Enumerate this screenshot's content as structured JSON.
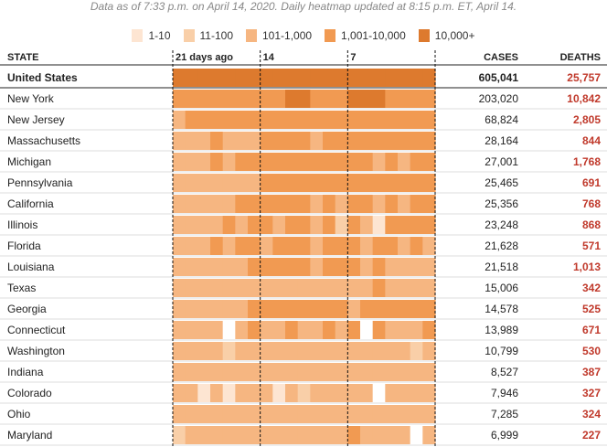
{
  "subtitle": "Data as of 7:33 p.m. on April 14, 2020. Daily heatmap updated at 8:15 p.m. ET, April 14.",
  "legend": [
    {
      "label": "1-10",
      "color": "#fde5d2"
    },
    {
      "label": "11-100",
      "color": "#f9cfa8"
    },
    {
      "label": "101-1,000",
      "color": "#f6b681"
    },
    {
      "label": "1,001-10,000",
      "color": "#f19a52"
    },
    {
      "label": "10,000+",
      "color": "#dd7a2e"
    }
  ],
  "headers": {
    "state": "STATE",
    "cases": "CASES",
    "deaths": "DEATHS"
  },
  "timeline_labels": [
    {
      "label": "21 days ago",
      "day_index": 0
    },
    {
      "label": "14",
      "day_index": 7
    },
    {
      "label": "7",
      "day_index": 14
    }
  ],
  "colors": {
    "deaths": "#c0392b",
    "divider": "#222222",
    "rowline": "#dddddd"
  },
  "chart_data": {
    "type": "heatmap",
    "title": "",
    "x_unit": "day (oldest to newest, 21 days)",
    "value_scale": "0=none, 1=1-10, 2=11-100, 3=101-1,000, 4=1,001-10,000, 5=10,000+",
    "rows": [
      {
        "state": "United States",
        "cases": "605,041",
        "deaths": "25,757",
        "bold": true,
        "cells": [
          5,
          5,
          5,
          5,
          5,
          5,
          5,
          5,
          5,
          5,
          5,
          5,
          5,
          5,
          5,
          5,
          5,
          5,
          5,
          5,
          5
        ]
      },
      {
        "state": "New York",
        "cases": "203,020",
        "deaths": "10,842",
        "cells": [
          4,
          4,
          4,
          4,
          4,
          4,
          4,
          4,
          4,
          5,
          5,
          4,
          4,
          4,
          5,
          5,
          5,
          4,
          4,
          4,
          4
        ]
      },
      {
        "state": "New Jersey",
        "cases": "68,824",
        "deaths": "2,805",
        "cells": [
          3,
          4,
          4,
          4,
          4,
          4,
          4,
          4,
          4,
          4,
          4,
          4,
          4,
          4,
          4,
          4,
          4,
          4,
          4,
          4,
          4
        ]
      },
      {
        "state": "Massachusetts",
        "cases": "28,164",
        "deaths": "844",
        "cells": [
          3,
          3,
          3,
          4,
          3,
          3,
          3,
          4,
          4,
          4,
          4,
          3,
          4,
          4,
          4,
          4,
          4,
          4,
          4,
          4,
          4
        ]
      },
      {
        "state": "Michigan",
        "cases": "27,001",
        "deaths": "1,768",
        "cells": [
          3,
          3,
          3,
          4,
          3,
          4,
          4,
          4,
          4,
          4,
          4,
          4,
          4,
          4,
          4,
          4,
          3,
          4,
          3,
          4,
          4
        ]
      },
      {
        "state": "Pennsylvania",
        "cases": "25,465",
        "deaths": "691",
        "cells": [
          3,
          3,
          3,
          3,
          3,
          3,
          3,
          4,
          4,
          4,
          4,
          4,
          4,
          4,
          4,
          4,
          4,
          4,
          4,
          4,
          4
        ]
      },
      {
        "state": "California",
        "cases": "25,356",
        "deaths": "768",
        "cells": [
          3,
          3,
          3,
          3,
          3,
          4,
          4,
          4,
          4,
          4,
          4,
          3,
          4,
          3,
          4,
          4,
          3,
          4,
          3,
          4,
          4
        ]
      },
      {
        "state": "Illinois",
        "cases": "23,248",
        "deaths": "868",
        "cells": [
          3,
          3,
          3,
          3,
          4,
          3,
          4,
          4,
          3,
          4,
          4,
          3,
          4,
          2,
          4,
          3,
          1,
          4,
          4,
          4,
          4
        ]
      },
      {
        "state": "Florida",
        "cases": "21,628",
        "deaths": "571",
        "cells": [
          3,
          3,
          3,
          4,
          3,
          4,
          4,
          3,
          4,
          4,
          4,
          3,
          4,
          4,
          4,
          3,
          4,
          4,
          3,
          4,
          3
        ]
      },
      {
        "state": "Louisiana",
        "cases": "21,518",
        "deaths": "1,013",
        "cells": [
          3,
          3,
          3,
          3,
          3,
          3,
          4,
          4,
          4,
          4,
          4,
          3,
          4,
          4,
          4,
          3,
          4,
          3,
          3,
          3,
          3
        ]
      },
      {
        "state": "Texas",
        "cases": "15,006",
        "deaths": "342",
        "cells": [
          3,
          3,
          3,
          3,
          3,
          3,
          3,
          3,
          3,
          3,
          3,
          3,
          3,
          3,
          3,
          3,
          4,
          3,
          3,
          3,
          3
        ]
      },
      {
        "state": "Georgia",
        "cases": "14,578",
        "deaths": "525",
        "cells": [
          3,
          3,
          3,
          3,
          3,
          3,
          4,
          4,
          4,
          4,
          4,
          4,
          4,
          4,
          3,
          4,
          4,
          4,
          4,
          4,
          4
        ]
      },
      {
        "state": "Connecticut",
        "cases": "13,989",
        "deaths": "671",
        "cells": [
          3,
          3,
          3,
          3,
          0,
          3,
          4,
          3,
          3,
          4,
          3,
          3,
          4,
          3,
          4,
          0,
          4,
          3,
          3,
          3,
          4
        ]
      },
      {
        "state": "Washington",
        "cases": "10,799",
        "deaths": "530",
        "cells": [
          3,
          3,
          3,
          3,
          2,
          3,
          3,
          3,
          3,
          3,
          3,
          3,
          3,
          3,
          3,
          3,
          3,
          3,
          3,
          2,
          3
        ]
      },
      {
        "state": "Indiana",
        "cases": "8,527",
        "deaths": "387",
        "cells": [
          3,
          3,
          3,
          3,
          3,
          3,
          3,
          3,
          3,
          3,
          3,
          3,
          3,
          3,
          3,
          3,
          3,
          3,
          3,
          3,
          3
        ]
      },
      {
        "state": "Colorado",
        "cases": "7,946",
        "deaths": "327",
        "cells": [
          3,
          3,
          1,
          3,
          1,
          3,
          3,
          3,
          1,
          3,
          2,
          3,
          3,
          3,
          3,
          3,
          0,
          3,
          3,
          3,
          3
        ]
      },
      {
        "state": "Ohio",
        "cases": "7,285",
        "deaths": "324",
        "cells": [
          3,
          3,
          3,
          3,
          3,
          3,
          3,
          3,
          3,
          3,
          3,
          3,
          3,
          3,
          3,
          3,
          3,
          3,
          3,
          3,
          3
        ]
      },
      {
        "state": "Maryland",
        "cases": "6,999",
        "deaths": "227",
        "cells": [
          2,
          3,
          3,
          3,
          3,
          3,
          3,
          3,
          3,
          3,
          3,
          3,
          3,
          3,
          4,
          3,
          3,
          3,
          3,
          0,
          3
        ]
      }
    ]
  }
}
